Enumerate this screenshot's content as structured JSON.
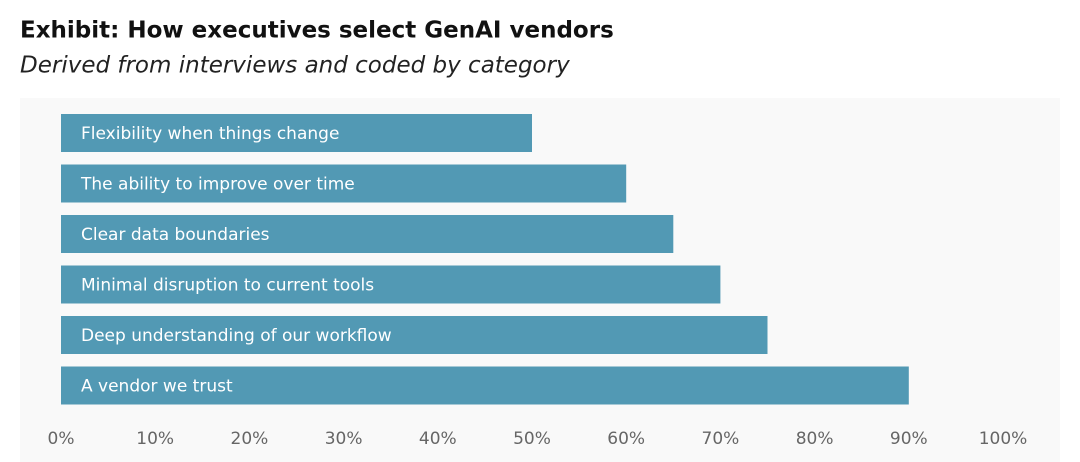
{
  "chart_data": {
    "type": "barh",
    "title": "Exhibit: How executives select GenAI vendors",
    "subtitle": "Derived from interviews and coded by category",
    "categories": [
      "Flexibility when things change",
      "The ability to improve over time",
      "Clear data boundaries",
      "Minimal disruption to current tools",
      "Deep understanding of our workflow",
      "A vendor we trust"
    ],
    "values": [
      50,
      60,
      65,
      70,
      75,
      90
    ],
    "color": "#5299b4",
    "xlim": [
      0,
      100
    ],
    "xticks": [
      {
        "value": 0,
        "label": "0%"
      },
      {
        "value": 10,
        "label": "10%"
      },
      {
        "value": 20,
        "label": "20%"
      },
      {
        "value": 30,
        "label": "30%"
      },
      {
        "value": 40,
        "label": "40%"
      },
      {
        "value": 50,
        "label": "50%"
      },
      {
        "value": 60,
        "label": "60%"
      },
      {
        "value": 70,
        "label": "70%"
      },
      {
        "value": 80,
        "label": "80%"
      },
      {
        "value": 90,
        "label": "90%"
      },
      {
        "value": 100,
        "label": "100%"
      }
    ]
  }
}
